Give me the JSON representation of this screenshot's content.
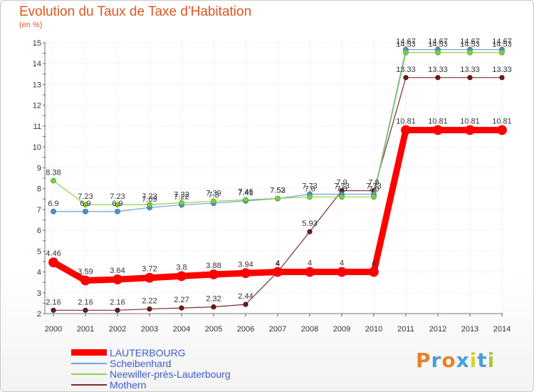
{
  "title": "Evolution du Taux de Taxe d'Habitation",
  "unit_label": "(en %)",
  "logo": {
    "letters": [
      {
        "ch": "P",
        "color": "#e9822a"
      },
      {
        "ch": "r",
        "color": "#4a9fd8"
      },
      {
        "ch": "o",
        "color": "#e9822a"
      },
      {
        "ch": "x",
        "color": "#4a9fd8"
      },
      {
        "ch": "i",
        "color": "#d9d22e"
      },
      {
        "ch": "t",
        "color": "#4a9fd8"
      },
      {
        "ch": "i",
        "color": "#a6ce39"
      }
    ]
  },
  "chart_data": {
    "type": "line",
    "title": "Evolution du Taux de Taxe d'Habitation",
    "ylabel": "(en %)",
    "xlabel": "",
    "x": [
      "2000",
      "2001",
      "2002",
      "2003",
      "2004",
      "2005",
      "2006",
      "2007",
      "2008",
      "2009",
      "2010",
      "2011",
      "2012",
      "2013",
      "2014"
    ],
    "ylim": [
      2,
      15
    ],
    "yticks": [
      2,
      3,
      4,
      5,
      6,
      7,
      8,
      9,
      10,
      11,
      12,
      13,
      14,
      15
    ],
    "grid": true,
    "legend_position": "bottom-left",
    "series": [
      {
        "name": "LAUTERBOURG",
        "color": "#ff0000",
        "values": [
          4.46,
          3.59,
          3.64,
          3.72,
          3.8,
          3.88,
          3.94,
          4,
          4,
          4,
          4,
          10.81,
          10.81,
          10.81,
          10.81
        ],
        "labels": [
          "4.46",
          "3.59",
          "3.64",
          "3.72",
          "3.8",
          "3.88",
          "3.94",
          "4",
          "4",
          "4",
          "4",
          "10.81",
          "10.81",
          "10.81",
          "10.81"
        ]
      },
      {
        "name": "Scheibenhard",
        "color": "#6fa3d8",
        "values": [
          6.9,
          6.9,
          6.9,
          7.09,
          7.22,
          7.3,
          7.41,
          7.52,
          7.73,
          7.73,
          7.73,
          14.67,
          14.67,
          14.67,
          14.67
        ],
        "labels": [
          "6.9",
          "6.9",
          "6.9",
          "7.09",
          "7.22",
          "7.3",
          "7.41",
          "7.52",
          "7.73",
          "7.73",
          "7.73",
          "14.67",
          "14.67",
          "14.67",
          "14.67"
        ]
      },
      {
        "name": "Neewiller-près-Lauterbourg",
        "color": "#8fd24a",
        "values": [
          8.38,
          7.23,
          7.23,
          7.23,
          7.32,
          7.39,
          7.46,
          7.53,
          7.6,
          7.6,
          7.6,
          14.53,
          14.53,
          14.53,
          14.53
        ],
        "labels": [
          "8.38",
          "7.23",
          "7.23",
          "7.23",
          "7.32",
          "7.39",
          "7.46",
          "7.53",
          "7.6",
          "7.6",
          "7.6",
          "14.53",
          "14.53",
          "14.53",
          "14.53"
        ]
      },
      {
        "name": "Mothern",
        "color": "#7a2e2e",
        "values": [
          2.16,
          2.16,
          2.16,
          2.22,
          2.27,
          2.32,
          2.44,
          4,
          5.93,
          7.9,
          7.9,
          13.33,
          13.33,
          13.33,
          13.33
        ],
        "labels": [
          "2.16",
          "2.16",
          "2.16",
          "2.22",
          "2.27",
          "2.32",
          "2.44",
          "4",
          "5.93",
          "7.9",
          "7.9",
          "13.33",
          "13.33",
          "13.33",
          "13.33"
        ]
      }
    ]
  }
}
